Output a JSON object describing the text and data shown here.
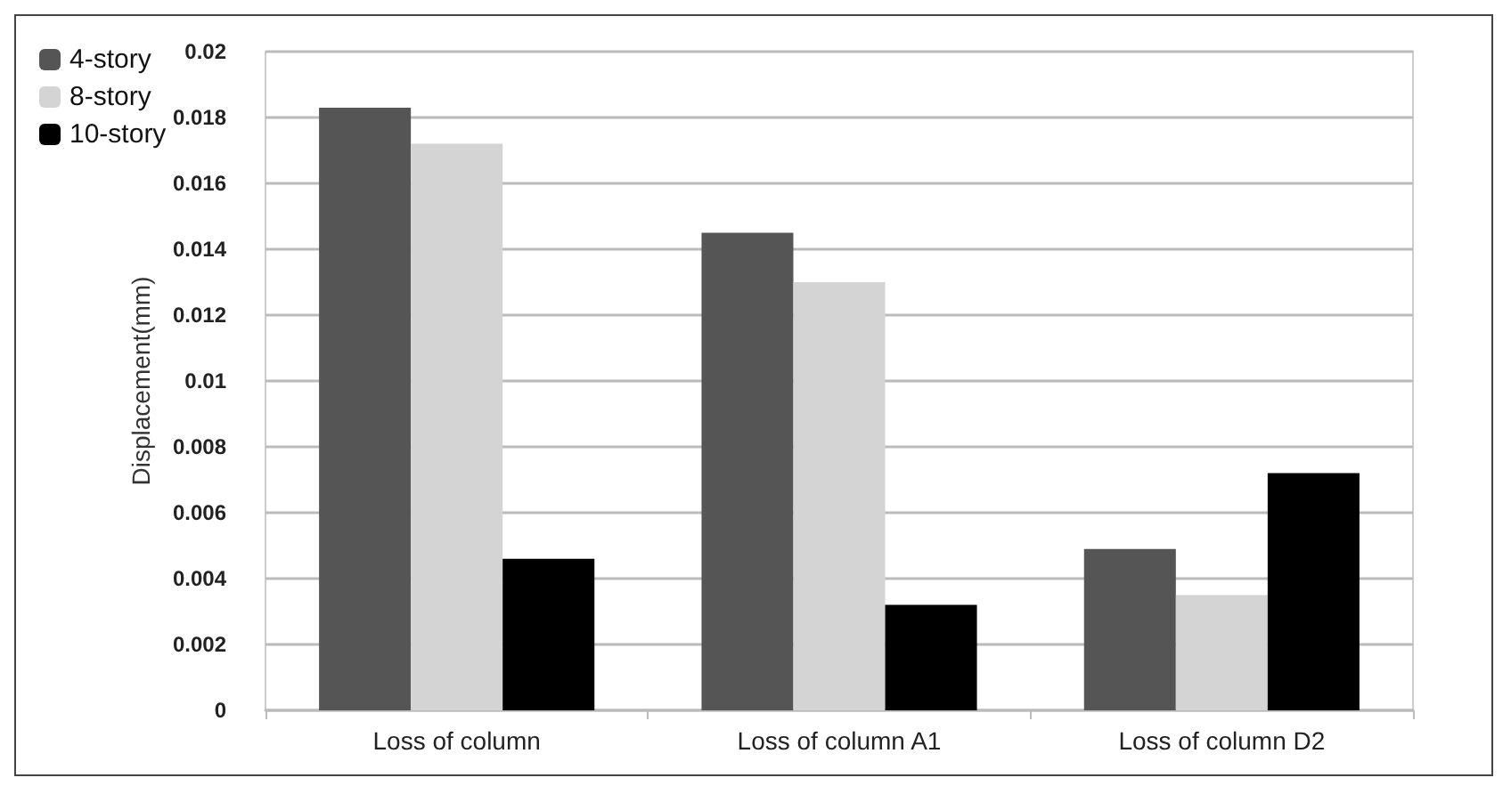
{
  "chart_data": {
    "type": "bar",
    "ylabel": "Displacement(mm)",
    "categories": [
      "Loss of column",
      "Loss of column A1",
      "Loss of column D2"
    ],
    "series": [
      {
        "name": "4-story",
        "color": "#555555",
        "values": [
          0.0183,
          0.0145,
          0.0049
        ]
      },
      {
        "name": "8-story",
        "color": "#d4d4d4",
        "values": [
          0.0172,
          0.013,
          0.0035
        ]
      },
      {
        "name": "10-story",
        "color": "#000000",
        "values": [
          0.0046,
          0.0032,
          0.0072
        ]
      }
    ],
    "ylim": [
      0,
      0.02
    ],
    "yticks": [
      0,
      0.002,
      0.004,
      0.006,
      0.008,
      0.01,
      0.012,
      0.014,
      0.016,
      0.018,
      0.02
    ],
    "grid": "y",
    "legend": "top left"
  }
}
